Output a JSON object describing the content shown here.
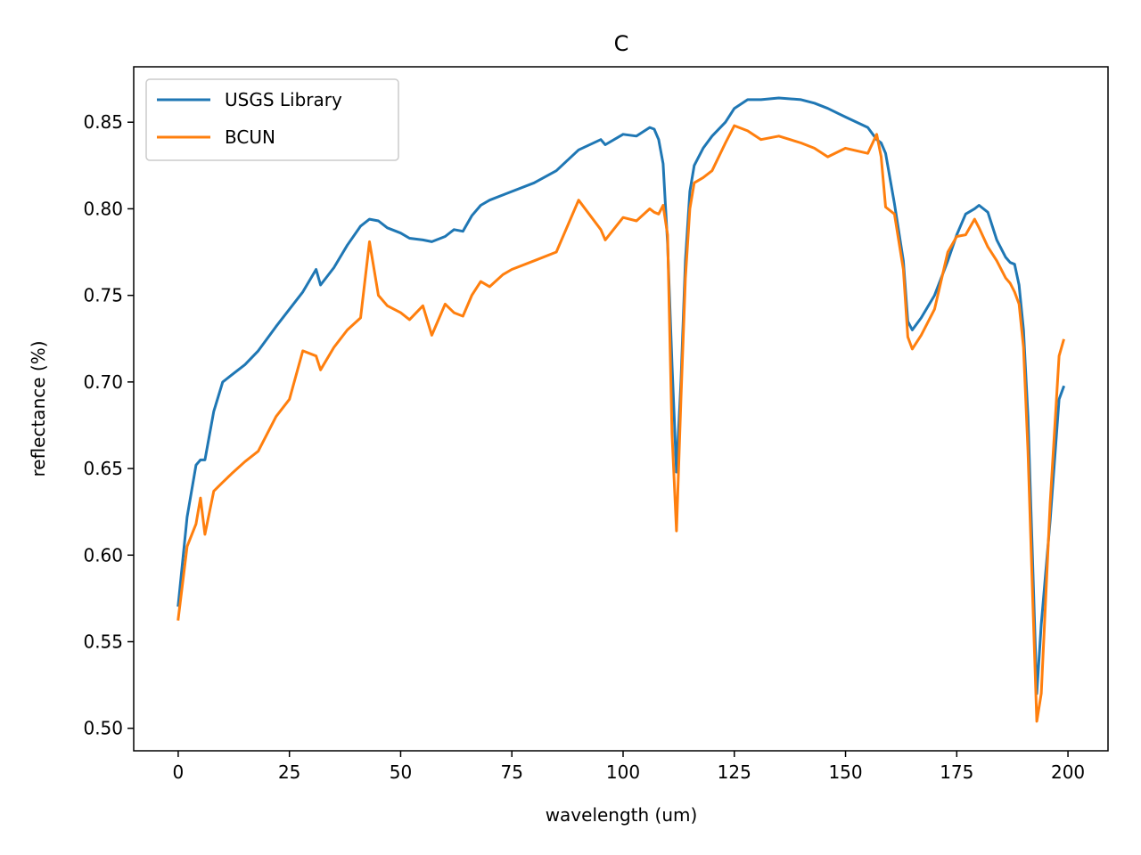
{
  "chart_data": {
    "type": "line",
    "title": "C",
    "xlabel": "wavelength (um)",
    "ylabel": "reflectance (%)",
    "xlim": [
      -10,
      209
    ],
    "ylim": [
      0.487,
      0.882
    ],
    "xticks": [
      0,
      25,
      50,
      75,
      100,
      125,
      150,
      175,
      200
    ],
    "yticks": [
      0.5,
      0.55,
      0.6,
      0.65,
      0.7,
      0.75,
      0.8,
      0.85
    ],
    "ytick_labels": [
      "0.50",
      "0.55",
      "0.60",
      "0.65",
      "0.70",
      "0.75",
      "0.80",
      "0.85"
    ],
    "grid": false,
    "legend_position": "upper-left",
    "x_key": [
      0,
      2,
      4,
      5,
      6,
      8,
      10,
      12,
      15,
      18,
      22,
      25,
      28,
      31,
      32,
      35,
      38,
      41,
      43,
      45,
      47,
      50,
      52,
      55,
      57,
      60,
      62,
      64,
      66,
      68,
      70,
      73,
      75,
      80,
      85,
      90,
      95,
      96,
      100,
      103,
      106,
      107,
      108,
      109,
      110,
      111,
      112,
      113,
      114,
      115,
      116,
      118,
      120,
      123,
      125,
      128,
      131,
      135,
      140,
      143,
      146,
      150,
      155,
      157,
      158,
      159,
      161,
      163,
      164,
      165,
      167,
      170,
      173,
      175,
      177,
      179,
      180,
      182,
      184,
      186,
      187,
      188,
      189,
      190,
      191,
      192,
      193,
      194,
      196,
      198,
      199
    ],
    "series": [
      {
        "name": "USGS Library",
        "color": "#1f77b4",
        "values": [
          0.571,
          0.622,
          0.652,
          0.655,
          0.655,
          0.683,
          0.7,
          0.704,
          0.71,
          0.718,
          0.732,
          0.742,
          0.752,
          0.765,
          0.756,
          0.766,
          0.779,
          0.79,
          0.794,
          0.793,
          0.789,
          0.786,
          0.783,
          0.782,
          0.781,
          0.784,
          0.788,
          0.787,
          0.796,
          0.802,
          0.805,
          0.808,
          0.81,
          0.815,
          0.822,
          0.834,
          0.84,
          0.837,
          0.843,
          0.842,
          0.847,
          0.846,
          0.84,
          0.826,
          0.78,
          0.71,
          0.648,
          0.7,
          0.77,
          0.81,
          0.825,
          0.835,
          0.842,
          0.85,
          0.858,
          0.863,
          0.863,
          0.864,
          0.863,
          0.861,
          0.858,
          0.853,
          0.847,
          0.84,
          0.838,
          0.832,
          0.803,
          0.77,
          0.735,
          0.73,
          0.737,
          0.75,
          0.77,
          0.785,
          0.797,
          0.8,
          0.802,
          0.798,
          0.782,
          0.772,
          0.769,
          0.768,
          0.756,
          0.73,
          0.68,
          0.6,
          0.52,
          0.56,
          0.62,
          0.69,
          0.697
        ]
      },
      {
        "name": "BCUN",
        "color": "#ff7f0e",
        "values": [
          0.563,
          0.605,
          0.618,
          0.633,
          0.612,
          0.637,
          0.642,
          0.647,
          0.654,
          0.66,
          0.68,
          0.69,
          0.718,
          0.715,
          0.707,
          0.72,
          0.73,
          0.737,
          0.781,
          0.75,
          0.744,
          0.74,
          0.736,
          0.744,
          0.727,
          0.745,
          0.74,
          0.738,
          0.75,
          0.758,
          0.755,
          0.762,
          0.765,
          0.77,
          0.775,
          0.805,
          0.788,
          0.782,
          0.795,
          0.793,
          0.8,
          0.798,
          0.797,
          0.802,
          0.785,
          0.67,
          0.614,
          0.69,
          0.76,
          0.8,
          0.815,
          0.818,
          0.822,
          0.838,
          0.848,
          0.845,
          0.84,
          0.842,
          0.838,
          0.835,
          0.83,
          0.835,
          0.832,
          0.843,
          0.83,
          0.801,
          0.797,
          0.765,
          0.726,
          0.719,
          0.727,
          0.742,
          0.775,
          0.784,
          0.785,
          0.794,
          0.789,
          0.778,
          0.77,
          0.76,
          0.757,
          0.752,
          0.745,
          0.72,
          0.66,
          0.58,
          0.504,
          0.52,
          0.63,
          0.715,
          0.724
        ]
      }
    ]
  }
}
